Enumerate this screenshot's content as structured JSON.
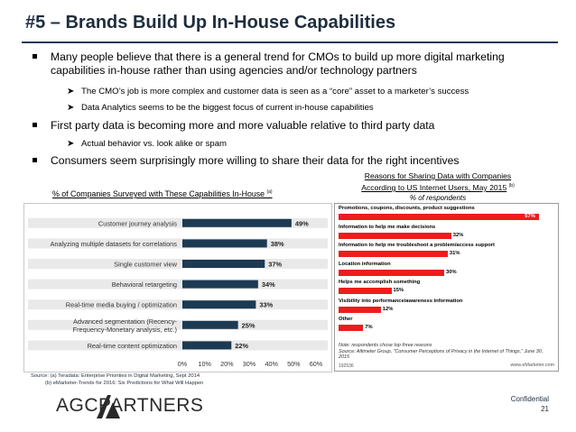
{
  "slide": {
    "title": "#5 – Brands Build Up In-House Capabilities",
    "bullets": [
      {
        "text": "Many people believe that there is a general trend for CMOs to build up more digital marketing capabilities in-house rather than using agencies and/or technology partners"
      },
      {
        "text": "First party data is becoming more and more valuable relative to third party data"
      },
      {
        "text": "Consumers seem surprisingly more willing to share their data for the right incentives"
      }
    ],
    "sub_bullets": [
      "The CMO’s job is more complex and customer data is seen as a “core”  asset to a marketer’s success",
      "Data Analytics seems to be the biggest focus of current in-house capabilities",
      "Actual behavior vs. look alike or spam"
    ],
    "sources": {
      "line1": "Source: (a) Teradata: Enterprise Priorities in Digital Marketing, Sept 2014",
      "line2": "(b) eMarketer-Trends for 2016: Six Predictions for What Will Happen"
    },
    "logo_text": "AGCPARTNERS",
    "confidential": "Confidential",
    "page_number": "21"
  },
  "chart_data": [
    {
      "type": "bar",
      "orientation": "horizontal",
      "title": "% of Companies Surveyed with These Capabilities In-House",
      "title_note": "(a)",
      "categories": [
        "Customer journey analysis",
        "Analyzing multiple datasets for correlations",
        "Single customer view",
        "Behavioral retargeting",
        "Real-time media buying / optimization",
        "Advanced segmentation (Recency-Frequency-Monetary analysis, etc.)",
        "Real-time content optimization"
      ],
      "category_lines": [
        [
          "Customer journey analysis"
        ],
        [
          "Analyzing multiple datasets for correlations"
        ],
        [
          "Single customer view"
        ],
        [
          "Behavioral retargeting"
        ],
        [
          "Real-time media buying / optimization"
        ],
        [
          "Advanced segmentation (Recency-",
          "Frequency-Monetary analysis, etc.)"
        ],
        [
          "Real-time content optimization"
        ]
      ],
      "values": [
        49,
        38,
        37,
        34,
        33,
        25,
        22
      ],
      "value_labels": [
        "49%",
        "38%",
        "37%",
        "34%",
        "33%",
        "25%",
        "22%"
      ],
      "xlim": [
        0,
        60
      ],
      "ticks": [
        "0%",
        "10%",
        "20%",
        "30%",
        "40%",
        "50%",
        "60%"
      ],
      "bar_color": "#1c3a52"
    },
    {
      "type": "bar",
      "orientation": "horizontal",
      "title_lines": [
        "Reasons for Sharing Data with Companies",
        "According to US Internet Users, May 2015"
      ],
      "title_note": "(b)",
      "subtitle": "% of respondents",
      "categories": [
        "Promotions, coupons, discounts, product suggestions",
        "Information to help me make decisions",
        "Information to help me troubleshoot a problem/access support",
        "Location information",
        "Helps me accomplish something",
        "Visibility into performance/awareness information",
        "Other"
      ],
      "values": [
        57,
        32,
        31,
        30,
        15,
        12,
        7
      ],
      "value_labels": [
        "57%",
        "32%",
        "31%",
        "30%",
        "15%",
        "12%",
        "7%"
      ],
      "xlim": [
        0,
        60
      ],
      "bar_color": "#ee1c1c",
      "note": "Note: respondents chose top three reasons",
      "source": "Source: Altimeter Group, \"Consumer Perceptions of Privacy in the Internet of Things,\" June 30, 2015",
      "footer_id": "192536",
      "brand": "www.eMarketer.com"
    }
  ]
}
